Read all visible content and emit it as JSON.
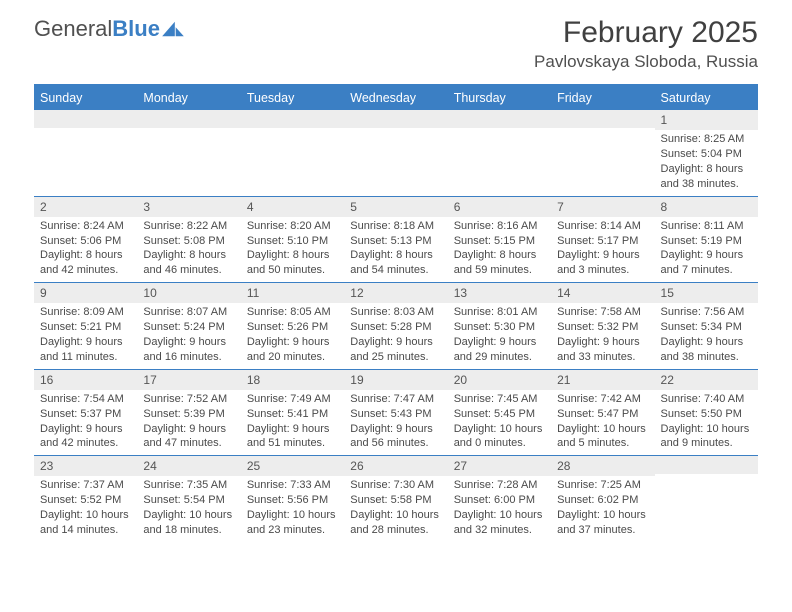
{
  "brand": {
    "name_a": "General",
    "name_b": "Blue"
  },
  "title": "February 2025",
  "location": "Pavlovskaya Sloboda, Russia",
  "colors": {
    "accent": "#3b7fc4",
    "header_text": "#ffffff",
    "daynum_bg": "#ededed",
    "body_text": "#4a4a4a",
    "page_bg": "#ffffff"
  },
  "day_names": [
    "Sunday",
    "Monday",
    "Tuesday",
    "Wednesday",
    "Thursday",
    "Friday",
    "Saturday"
  ],
  "weeks": [
    [
      {
        "n": "",
        "lines": []
      },
      {
        "n": "",
        "lines": []
      },
      {
        "n": "",
        "lines": []
      },
      {
        "n": "",
        "lines": []
      },
      {
        "n": "",
        "lines": []
      },
      {
        "n": "",
        "lines": []
      },
      {
        "n": "1",
        "lines": [
          "Sunrise: 8:25 AM",
          "Sunset: 5:04 PM",
          "Daylight: 8 hours and 38 minutes."
        ]
      }
    ],
    [
      {
        "n": "2",
        "lines": [
          "Sunrise: 8:24 AM",
          "Sunset: 5:06 PM",
          "Daylight: 8 hours and 42 minutes."
        ]
      },
      {
        "n": "3",
        "lines": [
          "Sunrise: 8:22 AM",
          "Sunset: 5:08 PM",
          "Daylight: 8 hours and 46 minutes."
        ]
      },
      {
        "n": "4",
        "lines": [
          "Sunrise: 8:20 AM",
          "Sunset: 5:10 PM",
          "Daylight: 8 hours and 50 minutes."
        ]
      },
      {
        "n": "5",
        "lines": [
          "Sunrise: 8:18 AM",
          "Sunset: 5:13 PM",
          "Daylight: 8 hours and 54 minutes."
        ]
      },
      {
        "n": "6",
        "lines": [
          "Sunrise: 8:16 AM",
          "Sunset: 5:15 PM",
          "Daylight: 8 hours and 59 minutes."
        ]
      },
      {
        "n": "7",
        "lines": [
          "Sunrise: 8:14 AM",
          "Sunset: 5:17 PM",
          "Daylight: 9 hours and 3 minutes."
        ]
      },
      {
        "n": "8",
        "lines": [
          "Sunrise: 8:11 AM",
          "Sunset: 5:19 PM",
          "Daylight: 9 hours and 7 minutes."
        ]
      }
    ],
    [
      {
        "n": "9",
        "lines": [
          "Sunrise: 8:09 AM",
          "Sunset: 5:21 PM",
          "Daylight: 9 hours and 11 minutes."
        ]
      },
      {
        "n": "10",
        "lines": [
          "Sunrise: 8:07 AM",
          "Sunset: 5:24 PM",
          "Daylight: 9 hours and 16 minutes."
        ]
      },
      {
        "n": "11",
        "lines": [
          "Sunrise: 8:05 AM",
          "Sunset: 5:26 PM",
          "Daylight: 9 hours and 20 minutes."
        ]
      },
      {
        "n": "12",
        "lines": [
          "Sunrise: 8:03 AM",
          "Sunset: 5:28 PM",
          "Daylight: 9 hours and 25 minutes."
        ]
      },
      {
        "n": "13",
        "lines": [
          "Sunrise: 8:01 AM",
          "Sunset: 5:30 PM",
          "Daylight: 9 hours and 29 minutes."
        ]
      },
      {
        "n": "14",
        "lines": [
          "Sunrise: 7:58 AM",
          "Sunset: 5:32 PM",
          "Daylight: 9 hours and 33 minutes."
        ]
      },
      {
        "n": "15",
        "lines": [
          "Sunrise: 7:56 AM",
          "Sunset: 5:34 PM",
          "Daylight: 9 hours and 38 minutes."
        ]
      }
    ],
    [
      {
        "n": "16",
        "lines": [
          "Sunrise: 7:54 AM",
          "Sunset: 5:37 PM",
          "Daylight: 9 hours and 42 minutes."
        ]
      },
      {
        "n": "17",
        "lines": [
          "Sunrise: 7:52 AM",
          "Sunset: 5:39 PM",
          "Daylight: 9 hours and 47 minutes."
        ]
      },
      {
        "n": "18",
        "lines": [
          "Sunrise: 7:49 AM",
          "Sunset: 5:41 PM",
          "Daylight: 9 hours and 51 minutes."
        ]
      },
      {
        "n": "19",
        "lines": [
          "Sunrise: 7:47 AM",
          "Sunset: 5:43 PM",
          "Daylight: 9 hours and 56 minutes."
        ]
      },
      {
        "n": "20",
        "lines": [
          "Sunrise: 7:45 AM",
          "Sunset: 5:45 PM",
          "Daylight: 10 hours and 0 minutes."
        ]
      },
      {
        "n": "21",
        "lines": [
          "Sunrise: 7:42 AM",
          "Sunset: 5:47 PM",
          "Daylight: 10 hours and 5 minutes."
        ]
      },
      {
        "n": "22",
        "lines": [
          "Sunrise: 7:40 AM",
          "Sunset: 5:50 PM",
          "Daylight: 10 hours and 9 minutes."
        ]
      }
    ],
    [
      {
        "n": "23",
        "lines": [
          "Sunrise: 7:37 AM",
          "Sunset: 5:52 PM",
          "Daylight: 10 hours and 14 minutes."
        ]
      },
      {
        "n": "24",
        "lines": [
          "Sunrise: 7:35 AM",
          "Sunset: 5:54 PM",
          "Daylight: 10 hours and 18 minutes."
        ]
      },
      {
        "n": "25",
        "lines": [
          "Sunrise: 7:33 AM",
          "Sunset: 5:56 PM",
          "Daylight: 10 hours and 23 minutes."
        ]
      },
      {
        "n": "26",
        "lines": [
          "Sunrise: 7:30 AM",
          "Sunset: 5:58 PM",
          "Daylight: 10 hours and 28 minutes."
        ]
      },
      {
        "n": "27",
        "lines": [
          "Sunrise: 7:28 AM",
          "Sunset: 6:00 PM",
          "Daylight: 10 hours and 32 minutes."
        ]
      },
      {
        "n": "28",
        "lines": [
          "Sunrise: 7:25 AM",
          "Sunset: 6:02 PM",
          "Daylight: 10 hours and 37 minutes."
        ]
      },
      {
        "n": "",
        "lines": []
      }
    ]
  ]
}
